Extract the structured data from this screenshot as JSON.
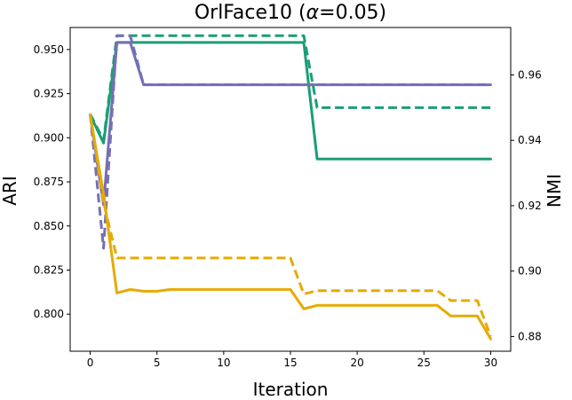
{
  "chart_data": {
    "type": "line",
    "title_main": "OrlFace10 (",
    "title_greek": "α",
    "title_rest": "=0.05)",
    "xlabel": "Iteration",
    "ylabel_left": "ARI",
    "ylabel_right": "NMI",
    "x_ticks": [
      0,
      5,
      10,
      15,
      20,
      25,
      30
    ],
    "y_left_ticks": [
      "0.800",
      "0.825",
      "0.850",
      "0.875",
      "0.900",
      "0.925",
      "0.950"
    ],
    "y_right_ticks": [
      "0.88",
      "0.90",
      "0.92",
      "0.94",
      "0.96"
    ],
    "xlim": [
      -1.5,
      31.5
    ],
    "ylim_left": [
      0.779,
      0.9625
    ],
    "ylim_right": [
      0.8755,
      0.9745
    ],
    "grid": false,
    "legend": "none",
    "series": [
      {
        "color": "#1b9e77",
        "style": "solid",
        "axis": "left",
        "x": [
          0,
          1,
          2,
          3,
          4,
          5,
          6,
          7,
          8,
          9,
          10,
          11,
          12,
          13,
          14,
          15,
          16,
          17,
          18,
          19,
          20,
          21,
          22,
          23,
          24,
          25,
          26,
          27,
          28,
          29,
          30
        ],
        "y": [
          0.913,
          0.897,
          0.954,
          0.954,
          0.954,
          0.954,
          0.954,
          0.954,
          0.954,
          0.954,
          0.954,
          0.954,
          0.954,
          0.954,
          0.954,
          0.954,
          0.954,
          0.888,
          0.888,
          0.888,
          0.888,
          0.888,
          0.888,
          0.888,
          0.888,
          0.888,
          0.888,
          0.888,
          0.888,
          0.888,
          0.888
        ]
      },
      {
        "color": "#1b9e77",
        "style": "dashed",
        "axis": "right",
        "x": [
          0,
          1,
          2,
          3,
          4,
          5,
          6,
          7,
          8,
          9,
          10,
          11,
          12,
          13,
          14,
          15,
          16,
          17,
          18,
          19,
          20,
          21,
          22,
          23,
          24,
          25,
          26,
          27,
          28,
          29,
          30
        ],
        "y": [
          0.948,
          0.94,
          0.972,
          0.972,
          0.972,
          0.972,
          0.972,
          0.972,
          0.972,
          0.972,
          0.972,
          0.972,
          0.972,
          0.972,
          0.972,
          0.972,
          0.972,
          0.95,
          0.95,
          0.95,
          0.95,
          0.95,
          0.95,
          0.95,
          0.95,
          0.95,
          0.95,
          0.95,
          0.95,
          0.95,
          0.95
        ]
      },
      {
        "color": "#7570b3",
        "style": "solid",
        "axis": "left",
        "x": [
          0,
          1,
          2,
          3,
          4,
          5,
          6,
          7,
          8,
          9,
          10,
          11,
          12,
          13,
          14,
          15,
          16,
          17,
          18,
          19,
          20,
          21,
          22,
          23,
          24,
          25,
          26,
          27,
          28,
          29,
          30
        ],
        "y": [
          0.913,
          0.862,
          0.954,
          0.954,
          0.93,
          0.93,
          0.93,
          0.93,
          0.93,
          0.93,
          0.93,
          0.93,
          0.93,
          0.93,
          0.93,
          0.93,
          0.93,
          0.93,
          0.93,
          0.93,
          0.93,
          0.93,
          0.93,
          0.93,
          0.93,
          0.93,
          0.93,
          0.93,
          0.93,
          0.93,
          0.93
        ]
      },
      {
        "color": "#7570b3",
        "style": "dashed",
        "axis": "right",
        "x": [
          0,
          1,
          2,
          3,
          4,
          5,
          6,
          7,
          8,
          9,
          10,
          11,
          12,
          13,
          14,
          15,
          16,
          17,
          18,
          19,
          20,
          21,
          22,
          23,
          24,
          25,
          26,
          27,
          28,
          29,
          30
        ],
        "y": [
          0.948,
          0.907,
          0.972,
          0.972,
          0.957,
          0.957,
          0.957,
          0.957,
          0.957,
          0.957,
          0.957,
          0.957,
          0.957,
          0.957,
          0.957,
          0.957,
          0.957,
          0.957,
          0.957,
          0.957,
          0.957,
          0.957,
          0.957,
          0.957,
          0.957,
          0.957,
          0.957,
          0.957,
          0.957,
          0.957,
          0.957
        ]
      },
      {
        "color": "#e6ab02",
        "style": "solid",
        "axis": "left",
        "x": [
          0,
          1,
          2,
          3,
          4,
          5,
          6,
          7,
          8,
          9,
          10,
          11,
          12,
          13,
          14,
          15,
          16,
          17,
          18,
          19,
          20,
          21,
          22,
          23,
          24,
          25,
          26,
          27,
          28,
          29,
          30
        ],
        "y": [
          0.913,
          0.868,
          0.812,
          0.814,
          0.813,
          0.813,
          0.814,
          0.814,
          0.814,
          0.814,
          0.814,
          0.814,
          0.814,
          0.814,
          0.814,
          0.814,
          0.803,
          0.805,
          0.805,
          0.805,
          0.805,
          0.805,
          0.805,
          0.805,
          0.805,
          0.805,
          0.805,
          0.799,
          0.799,
          0.799,
          0.786
        ]
      },
      {
        "color": "#e6ab02",
        "style": "dashed",
        "axis": "right",
        "x": [
          0,
          1,
          2,
          3,
          4,
          5,
          6,
          7,
          8,
          9,
          10,
          11,
          12,
          13,
          14,
          15,
          16,
          17,
          18,
          19,
          20,
          21,
          22,
          23,
          24,
          25,
          26,
          27,
          28,
          29,
          30
        ],
        "y": [
          0.948,
          0.921,
          0.904,
          0.904,
          0.904,
          0.904,
          0.904,
          0.904,
          0.904,
          0.904,
          0.904,
          0.904,
          0.904,
          0.904,
          0.904,
          0.904,
          0.893,
          0.894,
          0.894,
          0.894,
          0.894,
          0.894,
          0.894,
          0.894,
          0.894,
          0.894,
          0.894,
          0.891,
          0.891,
          0.891,
          0.88
        ]
      }
    ]
  }
}
